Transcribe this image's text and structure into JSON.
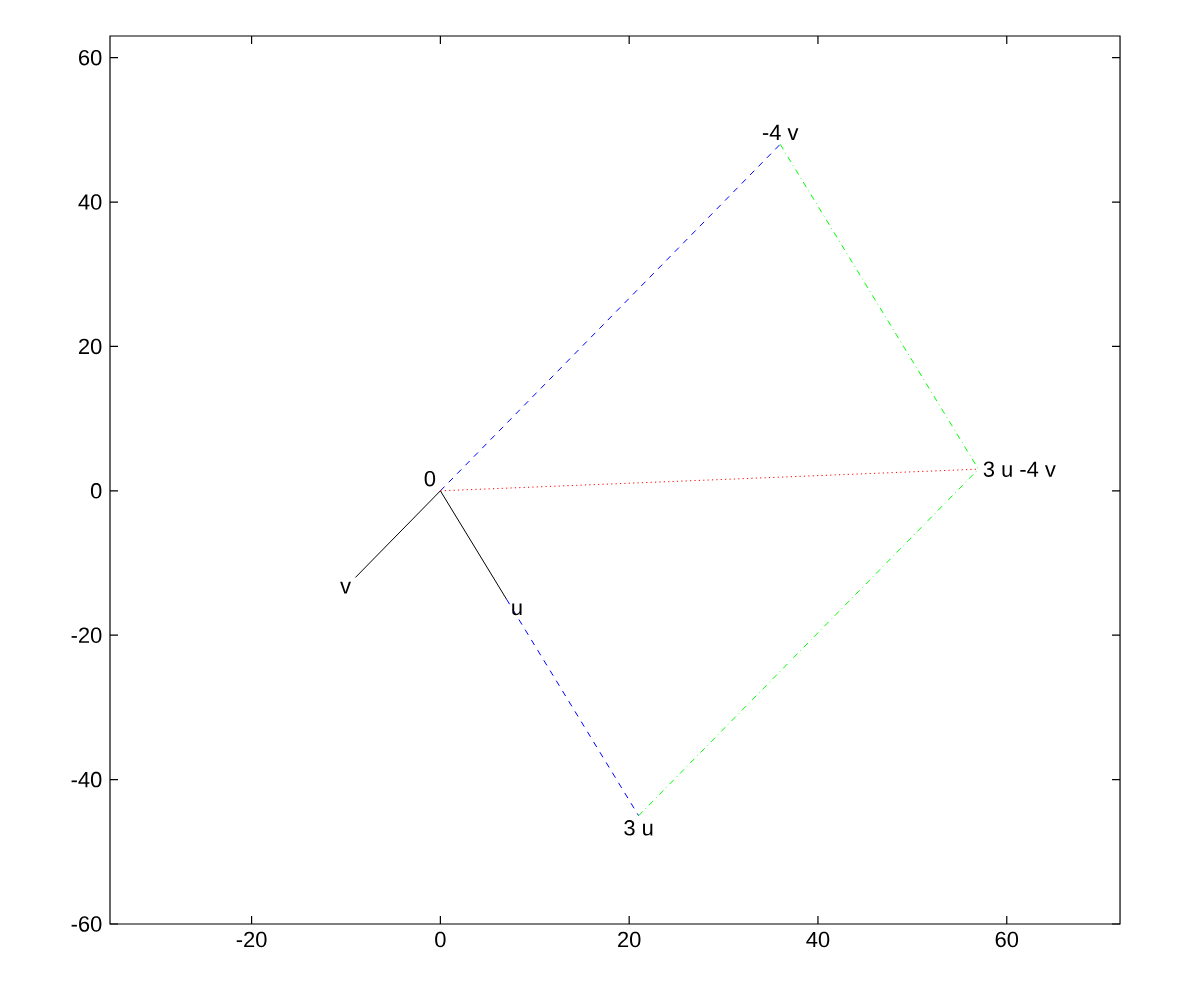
{
  "chart_data": {
    "type": "line",
    "xlim": [
      -35,
      72
    ],
    "ylim": [
      -60,
      63
    ],
    "xticks": [
      -20,
      0,
      20,
      40,
      60
    ],
    "yticks": [
      -60,
      -40,
      -20,
      0,
      20,
      40,
      60
    ],
    "grid": false,
    "marker": "none",
    "series": [
      {
        "color": "#000000",
        "line_style": "solid",
        "x": [
          0,
          7
        ],
        "values": [
          0,
          -15
        ]
      },
      {
        "color": "#000000",
        "line_style": "solid",
        "x": [
          0,
          -9
        ],
        "values": [
          0,
          -12
        ]
      },
      {
        "color": "#0000ff",
        "line_style": "dashed",
        "x": [
          0,
          36
        ],
        "values": [
          0,
          48
        ]
      },
      {
        "color": "#0000ff",
        "line_style": "dashed",
        "x": [
          7,
          21
        ],
        "values": [
          -15,
          -45
        ]
      },
      {
        "color": "#00ff00",
        "line_style": "dashdot",
        "x": [
          36,
          57
        ],
        "values": [
          48,
          3
        ]
      },
      {
        "color": "#00ff00",
        "line_style": "dashdot",
        "x": [
          21,
          57
        ],
        "values": [
          -45,
          3
        ]
      },
      {
        "color": "#ff0000",
        "line_style": "dotted",
        "x": [
          0,
          57
        ],
        "values": [
          0,
          3
        ]
      }
    ],
    "annotations": [
      {
        "text": "0",
        "x": 0,
        "y": 0
      },
      {
        "text": "u",
        "x": 7,
        "y": -15
      },
      {
        "text": "v",
        "x": -9,
        "y": -12
      },
      {
        "text": "3 u",
        "x": 21,
        "y": -45
      },
      {
        "text": "-4 v",
        "x": 36,
        "y": 48
      },
      {
        "text": "3 u -4 v",
        "x": 57,
        "y": 3
      }
    ]
  }
}
